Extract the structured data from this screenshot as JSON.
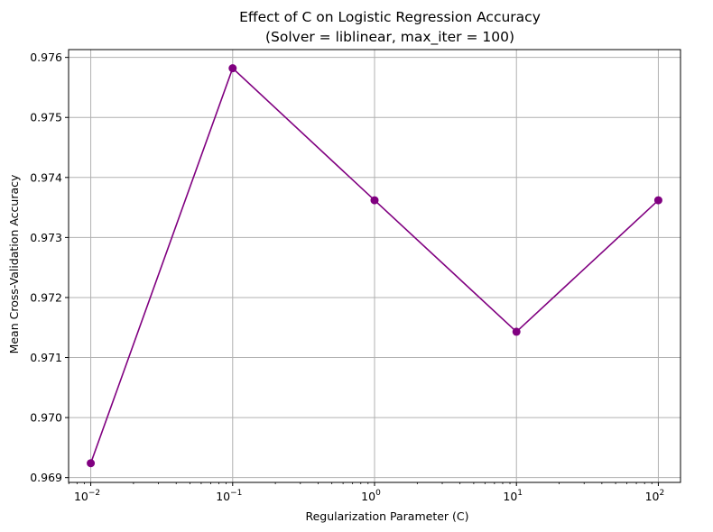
{
  "chart_data": {
    "type": "line",
    "title": "Effect of C on Logistic Regression Accuracy",
    "subtitle": "(Solver = liblinear, max_iter = 100)",
    "xlabel": "Regularization Parameter (C)",
    "ylabel": "Mean Cross-Validation Accuracy",
    "xscale": "log",
    "grid": true,
    "x": [
      0.01,
      0.1,
      1,
      10,
      100
    ],
    "x_tick_labels": [
      {
        "base": "10",
        "exp": "−2"
      },
      {
        "base": "10",
        "exp": "−1"
      },
      {
        "base": "10",
        "exp": "0"
      },
      {
        "base": "10",
        "exp": "1"
      },
      {
        "base": "10",
        "exp": "2"
      }
    ],
    "y_ticks": [
      "0.969",
      "0.970",
      "0.971",
      "0.972",
      "0.973",
      "0.974",
      "0.975",
      "0.976"
    ],
    "ylim": [
      0.96892,
      0.97613
    ],
    "series": [
      {
        "values": [
          0.96924,
          0.97582,
          0.97362,
          0.97143,
          0.97362
        ],
        "color": "#800080",
        "marker": "circle"
      }
    ]
  }
}
